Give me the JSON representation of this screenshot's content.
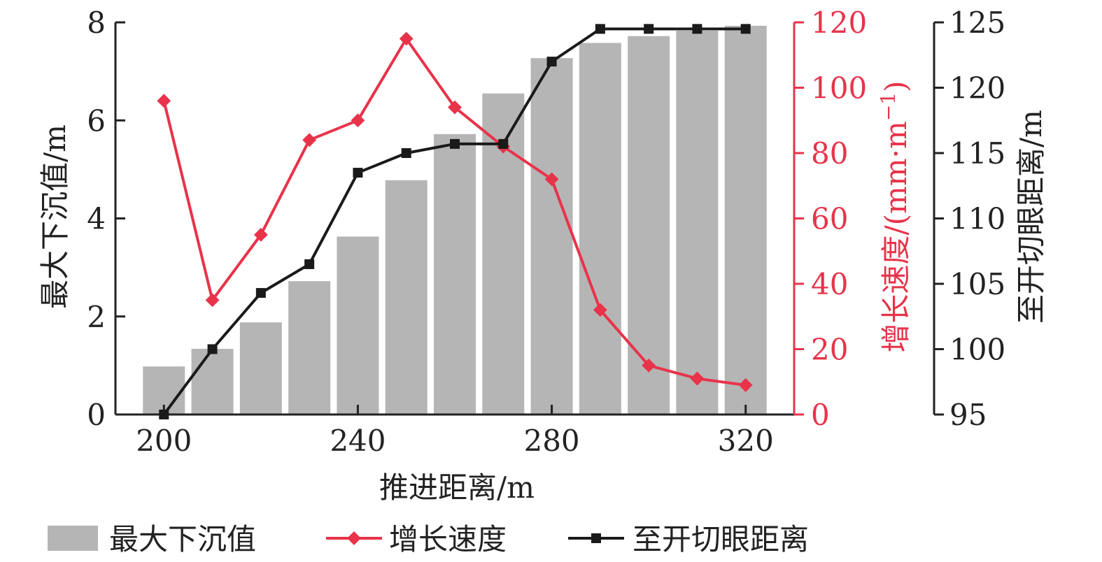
{
  "chart_data": {
    "type": "bar",
    "x": [
      200,
      210,
      220,
      230,
      240,
      250,
      260,
      270,
      280,
      290,
      300,
      310,
      320
    ],
    "xlabel": "推进距离/m",
    "xlim": [
      190,
      330
    ],
    "xticks": [
      200,
      240,
      280,
      320
    ],
    "axes": {
      "left": {
        "label": "最大下沉值/m",
        "range": [
          0,
          8
        ],
        "ticks": [
          0,
          2,
          4,
          6,
          8
        ],
        "color": "#222222"
      },
      "right1": {
        "label": "增长速度/(mm·m",
        "label_sup": "−1",
        "label_end": ")",
        "range": [
          0,
          120
        ],
        "ticks": [
          0,
          20,
          40,
          60,
          80,
          100,
          120
        ],
        "color": "#e8334a"
      },
      "right2": {
        "label": "至开切眼距离/m",
        "range": [
          95,
          125
        ],
        "ticks": [
          95,
          100,
          105,
          110,
          115,
          120,
          125
        ],
        "color": "#222222"
      }
    },
    "series": [
      {
        "name": "最大下沉值",
        "type": "bar",
        "axis": "left",
        "color": "#b5b5b5",
        "values": [
          0.98,
          1.34,
          1.88,
          2.72,
          3.63,
          4.78,
          5.72,
          6.55,
          7.27,
          7.58,
          7.72,
          7.83,
          7.93
        ]
      },
      {
        "name": "增长速度",
        "type": "line",
        "marker": "diamond",
        "axis": "right1",
        "color": "#e8334a",
        "values": [
          96,
          35,
          55,
          84,
          90,
          115,
          94,
          82,
          72,
          32,
          15,
          11,
          9
        ]
      },
      {
        "name": "至开切眼距离",
        "type": "line",
        "marker": "square",
        "axis": "right2",
        "color": "#1a1a1a",
        "values": [
          95,
          100,
          104.3,
          106.5,
          113.5,
          115,
          115.7,
          115.7,
          122,
          124.5,
          124.5,
          124.5,
          124.5
        ]
      }
    ],
    "legend": {
      "position": "bottom"
    }
  }
}
